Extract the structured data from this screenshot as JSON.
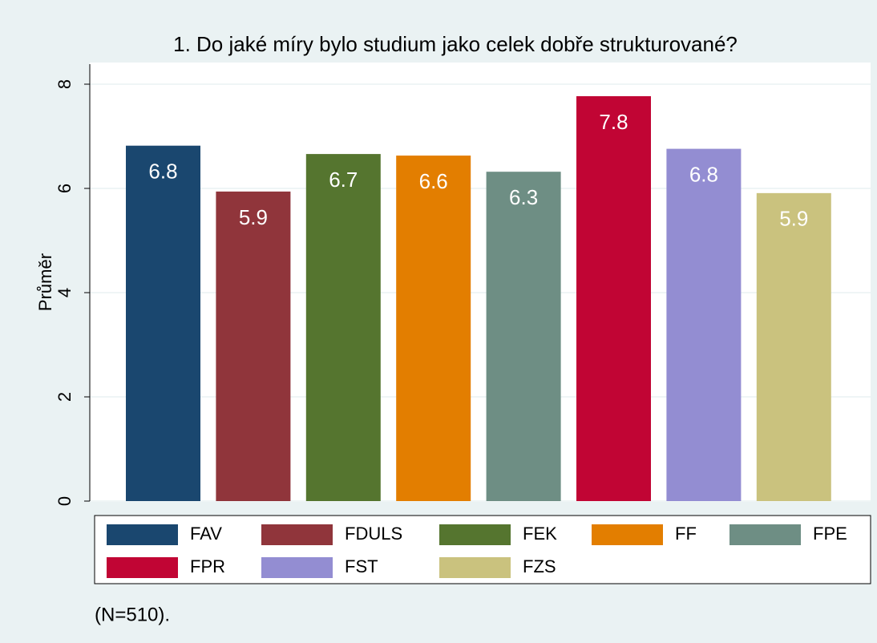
{
  "chart_data": {
    "type": "bar",
    "title": "1. Do jaké míry bylo studium jako celek dobře strukturované?",
    "y_label": "Průměr",
    "note": "(N=510).",
    "categories": [
      "FAV",
      "FDULS",
      "FEK",
      "FF",
      "FPE",
      "FPR",
      "FST",
      "FZS"
    ],
    "values": [
      6.82,
      5.94,
      6.66,
      6.63,
      6.32,
      7.77,
      6.76,
      5.91
    ],
    "value_labels": [
      "6.8",
      "5.9",
      "6.7",
      "6.6",
      "6.3",
      "7.8",
      "6.8",
      "5.9"
    ],
    "colors": [
      "#1a476f",
      "#90353b",
      "#55752f",
      "#e37e00",
      "#6e8e84",
      "#c10534",
      "#938dd2",
      "#cac27e"
    ],
    "ylim": [
      0,
      8
    ],
    "yticks": [
      0,
      2,
      4,
      6,
      8
    ],
    "grid": true
  }
}
